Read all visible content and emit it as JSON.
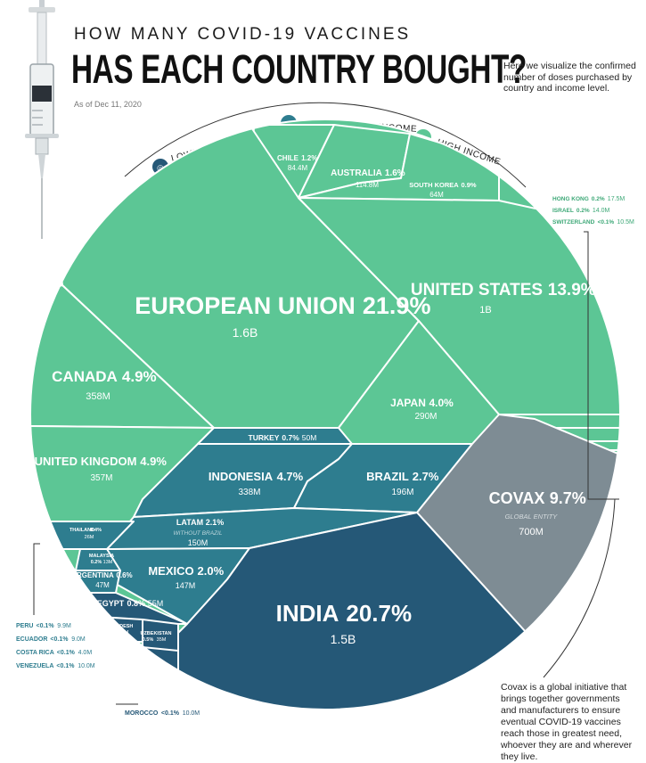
{
  "header": {
    "kicker": "HOW MANY COVID-19 VACCINES",
    "headline": "HAS EACH COUNTRY BOUGHT?",
    "subtitle": "Here we visualize the confirmed number of doses purchased by country and income level.",
    "as_of": "As of Dec 11, 2020"
  },
  "legend": {
    "lower_middle": "LOWER MIDDLE INCOME",
    "upper_middle": "UPPER MIDDLE INCOME",
    "high": "HIGH INCOME"
  },
  "colors": {
    "high": "#5cc695",
    "upper_middle": "#2e7d8f",
    "lower_middle": "#255877",
    "covax": "#7e8c94",
    "divider": "#ffffff"
  },
  "covax_note": "Covax is a global initiative that brings together governments and manufacturers to ensure eventual COVID-19 vaccines reach those in greatest need, whoever they are and wherever they live.",
  "chart_data": {
    "type": "voronoi treemap",
    "groups": [
      "High income",
      "Upper middle income",
      "Lower middle income",
      "Global entity"
    ],
    "items": [
      {
        "name": "EUROPEAN UNION",
        "share": "21.9%",
        "doses": "1.6B",
        "group": "high"
      },
      {
        "name": "INDIA",
        "share": "20.7%",
        "doses": "1.5B",
        "group": "lower_middle"
      },
      {
        "name": "UNITED STATES",
        "share": "13.9%",
        "doses": "1B",
        "group": "high"
      },
      {
        "name": "COVAX",
        "share": "9.7%",
        "doses": "700M",
        "group": "covax",
        "note": "GLOBAL ENTITY"
      },
      {
        "name": "CANADA",
        "share": "4.9%",
        "doses": "358M",
        "group": "high"
      },
      {
        "name": "UNITED KINGDOM",
        "share": "4.9%",
        "doses": "357M",
        "group": "high"
      },
      {
        "name": "INDONESIA",
        "share": "4.7%",
        "doses": "338M",
        "group": "upper_middle"
      },
      {
        "name": "JAPAN",
        "share": "4.0%",
        "doses": "290M",
        "group": "high"
      },
      {
        "name": "BRAZIL",
        "share": "2.7%",
        "doses": "196M",
        "group": "upper_middle"
      },
      {
        "name": "LATAM",
        "share": "2.1%",
        "doses": "150M",
        "group": "upper_middle",
        "note": "WITHOUT BRAZIL"
      },
      {
        "name": "MEXICO",
        "share": "2.0%",
        "doses": "147M",
        "group": "upper_middle"
      },
      {
        "name": "AUSTRALIA",
        "share": "1.6%",
        "doses": "114.8M",
        "group": "high"
      },
      {
        "name": "CHILE",
        "share": "1.2%",
        "doses": "84.4M",
        "group": "high"
      },
      {
        "name": "SOUTH KOREA",
        "share": "0.9%",
        "doses": "64M",
        "group": "high"
      },
      {
        "name": "EGYPT",
        "share": "0.8%",
        "doses": "55M",
        "group": "lower_middle"
      },
      {
        "name": "TURKEY",
        "share": "0.7%",
        "doses": "50M",
        "group": "upper_middle"
      },
      {
        "name": "ARGENTINA",
        "share": "0.6%",
        "doses": "47M",
        "group": "upper_middle"
      },
      {
        "name": "UZBEKISTAN",
        "share": "0.5%",
        "doses": "35M",
        "group": "lower_middle"
      },
      {
        "name": "THAILAND",
        "share": "0.4%",
        "doses": "26M",
        "group": "upper_middle"
      },
      {
        "name": "BANGLADESH",
        "share": "0.4%",
        "doses": "30M",
        "group": "lower_middle"
      },
      {
        "name": "MALAYSIA",
        "share": "0.2%",
        "doses": "13M",
        "group": "upper_middle"
      },
      {
        "name": "HONG KONG",
        "share": "0.2%",
        "doses": "17.5M",
        "group": "high"
      },
      {
        "name": "ISRAEL",
        "share": "0.2%",
        "doses": "14.0M",
        "group": "high"
      },
      {
        "name": "SWITZERLAND",
        "share": "<0.1%",
        "doses": "10.5M",
        "group": "high"
      },
      {
        "name": "PERU",
        "share": "<0.1%",
        "doses": "9.9M",
        "group": "upper_middle"
      },
      {
        "name": "ECUADOR",
        "share": "<0.1%",
        "doses": "9.0M",
        "group": "upper_middle"
      },
      {
        "name": "COSTA RICA",
        "share": "<0.1%",
        "doses": "4.0M",
        "group": "upper_middle"
      },
      {
        "name": "VENEZUELA",
        "share": "<0.1%",
        "doses": "10.0M",
        "group": "upper_middle"
      },
      {
        "name": "MOROCCO",
        "share": "<0.1%",
        "doses": "10.0M",
        "group": "lower_middle"
      }
    ],
    "callouts": {
      "right": [
        {
          "name": "HONG KONG",
          "share": "0.2%",
          "doses": "17.5M"
        },
        {
          "name": "ISRAEL",
          "share": "0.2%",
          "doses": "14.0M"
        },
        {
          "name": "SWITZERLAND",
          "share": "<0.1%",
          "doses": "10.5M"
        }
      ],
      "left": [
        {
          "name": "PERU",
          "share": "<0.1%",
          "doses": "9.9M"
        },
        {
          "name": "ECUADOR",
          "share": "<0.1%",
          "doses": "9.0M"
        },
        {
          "name": "COSTA RICA",
          "share": "<0.1%",
          "doses": "4.0M"
        },
        {
          "name": "VENEZUELA",
          "share": "<0.1%",
          "doses": "10.0M"
        }
      ],
      "bottom": [
        {
          "name": "MOROCCO",
          "share": "<0.1%",
          "doses": "10.0M"
        }
      ]
    }
  }
}
